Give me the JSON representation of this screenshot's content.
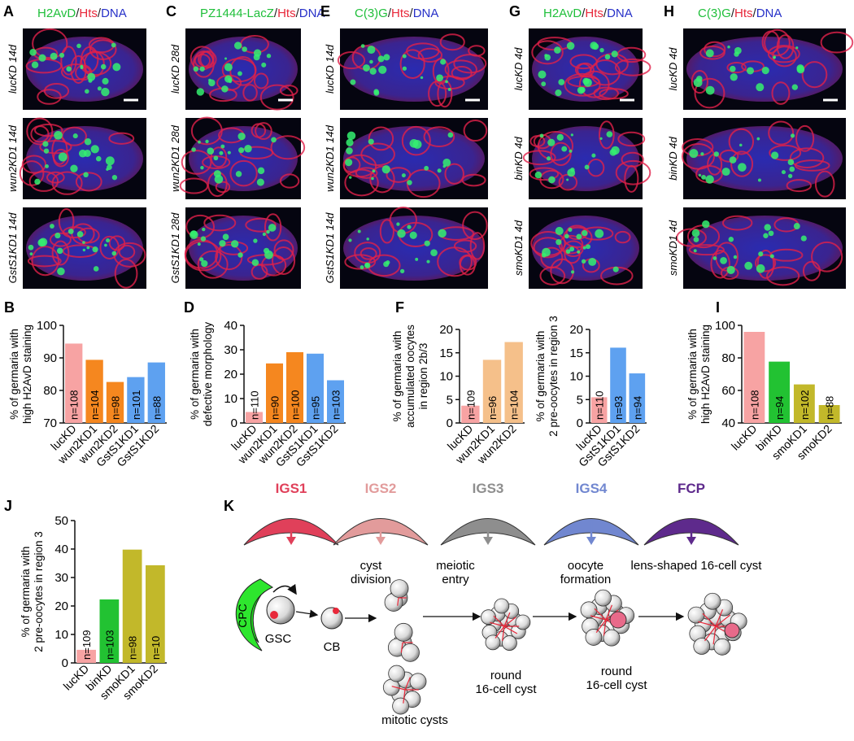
{
  "panels": [
    {
      "letter": "A",
      "title": [
        {
          "text": "H2AvD",
          "color": "#1fbf3a"
        },
        {
          "text": "/",
          "color": "#222222"
        },
        {
          "text": "Hts",
          "color": "#e8283a"
        },
        {
          "text": "/",
          "color": "#222222"
        },
        {
          "text": "DNA",
          "color": "#2630c8"
        }
      ],
      "rows": [
        "lucKD 14d",
        "wun2KD1 14d",
        "GstS1KD1 14d"
      ]
    },
    {
      "letter": "C",
      "title": [
        {
          "text": "PZ1444-LacZ",
          "color": "#1fbf3a"
        },
        {
          "text": "/",
          "color": "#222222"
        },
        {
          "text": "Hts",
          "color": "#e8283a"
        },
        {
          "text": "/",
          "color": "#222222"
        },
        {
          "text": "DNA",
          "color": "#2630c8"
        }
      ],
      "rows": [
        "lucKD 28d",
        "wun2KD1 28d",
        "GstS1KD1 28d"
      ]
    },
    {
      "letter": "E",
      "title": [
        {
          "text": "C(3)G",
          "color": "#1fbf3a"
        },
        {
          "text": "/",
          "color": "#222222"
        },
        {
          "text": "Hts",
          "color": "#e8283a"
        },
        {
          "text": "/",
          "color": "#222222"
        },
        {
          "text": "DNA",
          "color": "#2630c8"
        }
      ],
      "rows": [
        "lucKD 14d",
        "wun2KD1 14d",
        "GstS1KD1 14d"
      ]
    },
    {
      "letter": "G",
      "title": [
        {
          "text": "H2AvD",
          "color": "#1fbf3a"
        },
        {
          "text": "/",
          "color": "#222222"
        },
        {
          "text": "Hts",
          "color": "#e8283a"
        },
        {
          "text": "/",
          "color": "#222222"
        },
        {
          "text": "DNA",
          "color": "#2630c8"
        }
      ],
      "rows": [
        "lucKD 4d",
        "binKD 4d",
        "smoKD1 4d"
      ]
    },
    {
      "letter": "H",
      "title": [
        {
          "text": "C(3)G",
          "color": "#1fbf3a"
        },
        {
          "text": "/",
          "color": "#222222"
        },
        {
          "text": "Hts",
          "color": "#e8283a"
        },
        {
          "text": "/",
          "color": "#222222"
        },
        {
          "text": "DNA",
          "color": "#2630c8"
        }
      ],
      "rows": [
        "lucKD 4d",
        "binKD 4d",
        "smoKD1 4d"
      ]
    }
  ],
  "chart_data": [
    {
      "type": "bar",
      "panel": "B",
      "ylabel": [
        "% of germaria with",
        "high H2AvD staining"
      ],
      "categories": [
        "lucKD",
        "wun2KD1",
        "wun2KD2",
        "GstS1KD1",
        "GstS1KD2"
      ],
      "values": [
        94.4,
        89.4,
        82.6,
        84.1,
        88.6
      ],
      "colors": [
        "#f7a3a3",
        "#f5871f",
        "#f5871f",
        "#5ea1f0",
        "#5ea1f0"
      ],
      "sample_sizes": [
        "n=108",
        "n=104",
        "n=98",
        "n=101",
        "n=88"
      ],
      "ylim": [
        70,
        100
      ],
      "yticks": [
        70,
        80,
        90,
        100
      ]
    },
    {
      "type": "bar",
      "panel": "D",
      "ylabel": [
        "% of germaria with",
        "defective morphology"
      ],
      "categories": [
        "lucKD",
        "wun2KD1",
        "wun2KD2",
        "GstS1KD1",
        "GstS1KD2"
      ],
      "values": [
        4.5,
        24.4,
        29,
        28.4,
        17.5
      ],
      "colors": [
        "#f7a3a3",
        "#f5871f",
        "#f5871f",
        "#5ea1f0",
        "#5ea1f0"
      ],
      "sample_sizes": [
        "n=110",
        "n=90",
        "n=100",
        "n=95",
        "n=103"
      ],
      "ylim": [
        0,
        40
      ],
      "yticks": [
        0,
        10,
        20,
        30,
        40
      ]
    },
    {
      "type": "bar",
      "panel": "F",
      "ylabel": [
        "% of germaria with",
        "accumulated oocytes",
        "in region 2b/3"
      ],
      "categories": [
        "lucKD",
        "wun2KD1",
        "wun2KD2"
      ],
      "values": [
        3.7,
        13.5,
        17.3
      ],
      "colors": [
        "#f7a3a3",
        "#f5c08a",
        "#f5c08a"
      ],
      "sample_sizes": [
        "n=109",
        "n=96",
        "n=104"
      ],
      "ylim": [
        0,
        20
      ],
      "yticks": [
        0,
        5,
        10,
        15,
        20
      ]
    },
    {
      "type": "bar",
      "ylabel": [
        "% of germaria with",
        "2 pre-oocytes in region 3"
      ],
      "categories": [
        "lucKD",
        "GstS1KD1",
        "GstS1KD2"
      ],
      "values": [
        5.5,
        16.1,
        10.6
      ],
      "colors": [
        "#f7a3a3",
        "#5ea1f0",
        "#5ea1f0"
      ],
      "sample_sizes": [
        "n=110",
        "n=93",
        "n=94"
      ],
      "ylim": [
        0,
        20
      ],
      "yticks": [
        0,
        5,
        10,
        15,
        20
      ]
    },
    {
      "type": "bar",
      "panel": "I",
      "ylabel": [
        "% of germaria with",
        "high H2AvD staining"
      ],
      "categories": [
        "lucKD",
        "binKD",
        "smoKD1",
        "smoKD2"
      ],
      "values": [
        96,
        77.7,
        63.7,
        51
      ],
      "colors": [
        "#f7a3a3",
        "#22c232",
        "#c2b82a",
        "#c2b82a"
      ],
      "sample_sizes": [
        "n=108",
        "n=94",
        "n=102",
        "n=88"
      ],
      "ylim": [
        40,
        100
      ],
      "yticks": [
        40,
        60,
        80,
        100
      ]
    },
    {
      "type": "bar",
      "panel": "J",
      "ylabel": [
        "% of germaria with",
        "2 pre-oocytes in region 3"
      ],
      "categories": [
        "lucKD",
        "binKD",
        "smoKD1",
        "smoKD2"
      ],
      "values": [
        4.6,
        22.3,
        39.8,
        34.3
      ],
      "colors": [
        "#f7a3a3",
        "#22c232",
        "#c2b82a",
        "#c2b82a"
      ],
      "sample_sizes": [
        "n=109",
        "n=103",
        "n=98",
        "n=10"
      ],
      "ylim": [
        0,
        50
      ],
      "yticks": [
        0,
        10,
        20,
        30,
        40,
        50
      ]
    }
  ],
  "diagram": {
    "letter": "K",
    "stages": [
      {
        "label": "IGS1",
        "color": "#e0405a"
      },
      {
        "label": "IGS2",
        "color": "#e29b9b"
      },
      {
        "label": "IGS3",
        "color": "#8e8e8e"
      },
      {
        "label": "IGS4",
        "color": "#7187d0"
      },
      {
        "label": "FCP",
        "color": "#5e2a8c"
      }
    ],
    "labels": [
      "CPC",
      "GSC",
      "CB",
      "cyst division",
      "mitotic cysts",
      "meiotic entry",
      "round 16-cell cyst",
      "oocyte formation",
      "round 16-cell cyst",
      "lens-shaped 16-cell cyst"
    ]
  }
}
